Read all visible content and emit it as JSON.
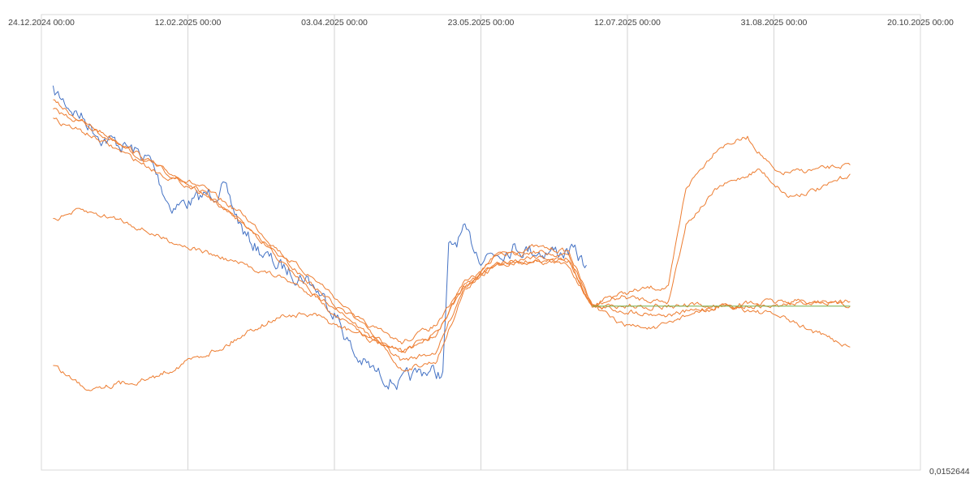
{
  "chart_data": {
    "type": "line",
    "title": "",
    "xlabel": "",
    "ylabel": "",
    "x_tick_labels": [
      "24.12.2024 00:00",
      "12.02.2025 00:00",
      "03.04.2025 00:00",
      "23.05.2025 00:00",
      "12.07.2025 00:00",
      "31.08.2025 00:00",
      "20.10.2025 00:00"
    ],
    "y_tick_labels": [
      "0,0152644"
    ],
    "xlim": [
      "24.12.2024 00:00",
      "20.10.2025 00:00"
    ],
    "grid": "vertical",
    "legend": "none",
    "colors": {
      "blue": "#4472c4",
      "orange": "#ed7d31",
      "green": "#70ad47",
      "grid": "#d9d9d9",
      "axis": "#bfbfbf"
    },
    "y_units": "relative height above the 0,0152644 baseline (0–1 of plot area)",
    "series": [
      {
        "color": "#4472c4",
        "noise": 0.028,
        "points": [
          [
            "28.12.2024",
            0.83
          ],
          [
            "06.01.2025",
            0.78
          ],
          [
            "14.01.2025",
            0.73
          ],
          [
            "22.01.2025",
            0.71
          ],
          [
            "30.01.2025",
            0.68
          ],
          [
            "06.02.2025",
            0.58
          ],
          [
            "14.02.2025",
            0.59
          ],
          [
            "24.02.2025",
            0.62
          ],
          [
            "04.03.2025",
            0.51
          ],
          [
            "14.03.2025",
            0.45
          ],
          [
            "25.03.2025",
            0.42
          ],
          [
            "03.04.2025",
            0.35
          ],
          [
            "10.04.2025",
            0.25
          ],
          [
            "18.04.2025",
            0.21
          ],
          [
            "26.04.2025",
            0.19
          ],
          [
            "04.05.2025",
            0.22
          ],
          [
            "10.05.2025",
            0.21
          ],
          [
            "12.05.2025",
            0.48
          ],
          [
            "17.05.2025",
            0.52
          ],
          [
            "23.05.2025",
            0.47
          ],
          [
            "03.06.2025",
            0.49
          ],
          [
            "13.06.2025",
            0.48
          ],
          [
            "23.06.2025",
            0.48
          ],
          [
            "28.06.2025",
            0.45
          ]
        ]
      },
      {
        "color": "#ed7d31",
        "noise": 0.009,
        "points": [
          [
            "28.12.2024",
            0.81
          ],
          [
            "08.01.2025",
            0.76
          ],
          [
            "20.01.2025",
            0.72
          ],
          [
            "03.02.2025",
            0.66
          ],
          [
            "17.02.2025",
            0.62
          ],
          [
            "03.03.2025",
            0.56
          ],
          [
            "17.03.2025",
            0.47
          ],
          [
            "31.03.2025",
            0.4
          ],
          [
            "14.04.2025",
            0.31
          ],
          [
            "26.04.2025",
            0.22
          ],
          [
            "08.05.2025",
            0.24
          ],
          [
            "17.05.2025",
            0.39
          ],
          [
            "28.05.2025",
            0.47
          ],
          [
            "10.06.2025",
            0.49
          ],
          [
            "22.06.2025",
            0.48
          ],
          [
            "30.06.2025",
            0.36
          ],
          [
            "05.07.2025",
            0.38
          ],
          [
            "20.07.2025",
            0.4
          ],
          [
            "26.07.2025",
            0.4
          ],
          [
            "01.08.2025",
            0.62
          ],
          [
            "12.08.2025",
            0.71
          ],
          [
            "22.08.2025",
            0.73
          ],
          [
            "01.09.2025",
            0.65
          ],
          [
            "15.09.2025",
            0.66
          ],
          [
            "26.09.2025",
            0.67
          ]
        ]
      },
      {
        "color": "#ed7d31",
        "noise": 0.009,
        "points": [
          [
            "28.12.2024",
            0.79
          ],
          [
            "08.01.2025",
            0.76
          ],
          [
            "20.01.2025",
            0.71
          ],
          [
            "03.02.2025",
            0.66
          ],
          [
            "17.02.2025",
            0.61
          ],
          [
            "03.03.2025",
            0.54
          ],
          [
            "17.03.2025",
            0.46
          ],
          [
            "31.03.2025",
            0.38
          ],
          [
            "14.04.2025",
            0.3
          ],
          [
            "26.04.2025",
            0.24
          ],
          [
            "08.05.2025",
            0.26
          ],
          [
            "17.05.2025",
            0.4
          ],
          [
            "28.05.2025",
            0.47
          ],
          [
            "10.06.2025",
            0.48
          ],
          [
            "22.06.2025",
            0.47
          ],
          [
            "30.06.2025",
            0.36
          ],
          [
            "10.07.2025",
            0.38
          ],
          [
            "26.07.2025",
            0.37
          ],
          [
            "01.08.2025",
            0.54
          ],
          [
            "12.08.2025",
            0.62
          ],
          [
            "26.08.2025",
            0.66
          ],
          [
            "05.09.2025",
            0.6
          ],
          [
            "17.09.2025",
            0.62
          ],
          [
            "26.09.2025",
            0.65
          ]
        ]
      },
      {
        "color": "#ed7d31",
        "noise": 0.009,
        "points": [
          [
            "28.12.2024",
            0.77
          ],
          [
            "08.01.2025",
            0.74
          ],
          [
            "20.01.2025",
            0.7
          ],
          [
            "03.02.2025",
            0.65
          ],
          [
            "17.02.2025",
            0.61
          ],
          [
            "03.03.2025",
            0.54
          ],
          [
            "17.03.2025",
            0.45
          ],
          [
            "31.03.2025",
            0.36
          ],
          [
            "14.04.2025",
            0.29
          ],
          [
            "26.04.2025",
            0.26
          ],
          [
            "08.05.2025",
            0.3
          ],
          [
            "17.05.2025",
            0.41
          ],
          [
            "28.05.2025",
            0.45
          ],
          [
            "10.06.2025",
            0.47
          ],
          [
            "22.06.2025",
            0.46
          ],
          [
            "30.06.2025",
            0.36
          ],
          [
            "10.07.2025",
            0.35
          ],
          [
            "26.07.2025",
            0.34
          ],
          [
            "12.08.2025",
            0.36
          ],
          [
            "01.09.2025",
            0.36
          ],
          [
            "15.09.2025",
            0.37
          ],
          [
            "26.09.2025",
            0.36
          ]
        ]
      },
      {
        "color": "#ed7d31",
        "noise": 0.009,
        "points": [
          [
            "28.12.2024",
            0.55
          ],
          [
            "06.01.2025",
            0.57
          ],
          [
            "20.01.2025",
            0.55
          ],
          [
            "03.02.2025",
            0.51
          ],
          [
            "17.02.2025",
            0.48
          ],
          [
            "03.03.2025",
            0.45
          ],
          [
            "17.03.2025",
            0.42
          ],
          [
            "31.03.2025",
            0.37
          ],
          [
            "14.04.2025",
            0.32
          ],
          [
            "26.04.2025",
            0.28
          ],
          [
            "08.05.2025",
            0.32
          ],
          [
            "17.05.2025",
            0.4
          ],
          [
            "28.05.2025",
            0.45
          ],
          [
            "10.06.2025",
            0.46
          ],
          [
            "22.06.2025",
            0.45
          ],
          [
            "30.06.2025",
            0.36
          ],
          [
            "10.07.2025",
            0.32
          ],
          [
            "22.07.2025",
            0.31
          ],
          [
            "01.08.2025",
            0.34
          ],
          [
            "15.08.2025",
            0.36
          ],
          [
            "01.09.2025",
            0.34
          ],
          [
            "15.09.2025",
            0.3
          ],
          [
            "26.09.2025",
            0.27
          ]
        ]
      },
      {
        "color": "#ed7d31",
        "noise": 0.01,
        "points": [
          [
            "28.12.2024",
            0.23
          ],
          [
            "08.01.2025",
            0.18
          ],
          [
            "20.01.2025",
            0.19
          ],
          [
            "30.01.2025",
            0.2
          ],
          [
            "06.02.2025",
            0.22
          ],
          [
            "12.02.2025",
            0.24
          ],
          [
            "24.02.2025",
            0.27
          ],
          [
            "06.03.2025",
            0.31
          ],
          [
            "17.03.2025",
            0.34
          ],
          [
            "27.03.2025",
            0.34
          ],
          [
            "06.04.2025",
            0.31
          ],
          [
            "16.04.2025",
            0.29
          ],
          [
            "26.04.2025",
            0.26
          ],
          [
            "08.05.2025",
            0.3
          ],
          [
            "17.05.2025",
            0.4
          ],
          [
            "28.05.2025",
            0.45
          ],
          [
            "10.06.2025",
            0.46
          ],
          [
            "22.06.2025",
            0.46
          ],
          [
            "30.06.2025",
            0.36
          ],
          [
            "10.07.2025",
            0.36
          ],
          [
            "26.07.2025",
            0.36
          ],
          [
            "12.08.2025",
            0.36
          ],
          [
            "01.09.2025",
            0.37
          ],
          [
            "15.09.2025",
            0.37
          ],
          [
            "26.09.2025",
            0.37
          ]
        ]
      },
      {
        "color": "#70ad47",
        "noise": 0,
        "points": [
          [
            "30.06.2025",
            0.36
          ],
          [
            "26.09.2025",
            0.36
          ]
        ]
      }
    ]
  }
}
